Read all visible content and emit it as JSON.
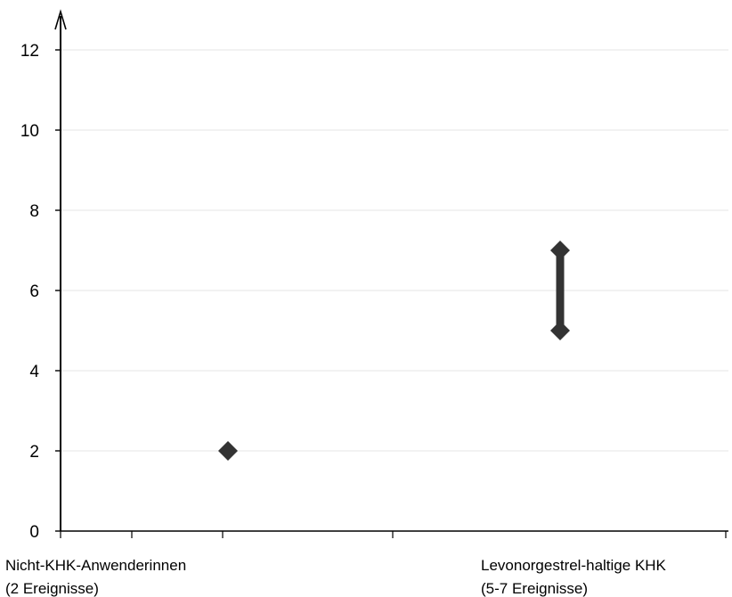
{
  "chart_data": {
    "type": "scatter",
    "title": "",
    "xlabel": "",
    "ylabel": "",
    "ylim": [
      0,
      12.6
    ],
    "y_ticks": [
      0,
      2,
      4,
      6,
      8,
      10,
      12
    ],
    "grid": true,
    "categories": [
      {
        "label_line1": "Nicht-KHK-Anwenderinnen",
        "label_line2": "(2 Ereignisse)",
        "low": 2,
        "high": 2
      },
      {
        "label_line1": "Levonorgestrel-haltige KHK",
        "label_line2": "(5-7 Ereignisse)",
        "low": 5,
        "high": 7
      }
    ],
    "colors": {
      "marker": "#333333",
      "axis": "#000000",
      "grid": "#e6e6e6"
    }
  }
}
